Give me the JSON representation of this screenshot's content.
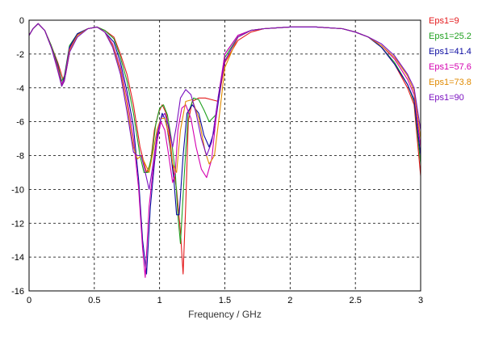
{
  "chart_data": {
    "type": "line",
    "title": "",
    "xlabel": "Frequency / GHz",
    "ylabel": "",
    "xlim": [
      0,
      3
    ],
    "ylim": [
      -16,
      0
    ],
    "xticks": [
      0,
      0.5,
      1,
      1.5,
      2,
      2.5,
      3
    ],
    "xtick_labels": [
      "0",
      "0.5",
      "1",
      "1.5",
      "2",
      "2.5",
      "3"
    ],
    "yticks": [
      0,
      -2,
      -4,
      -6,
      -8,
      -10,
      -12,
      -14,
      -16
    ],
    "ytick_labels": [
      "0",
      "-2",
      "-4",
      "-6",
      "-8",
      "-10",
      "-12",
      "-14",
      "-16"
    ],
    "grid": true,
    "grid_style": "dashed",
    "legend_placement": "right",
    "series": [
      {
        "name": "Eps1=9",
        "color": "#e41a1c",
        "x": [
          0,
          0.03,
          0.07,
          0.12,
          0.17,
          0.22,
          0.26,
          0.28,
          0.32,
          0.38,
          0.45,
          0.52,
          0.58,
          0.65,
          0.7,
          0.75,
          0.8,
          0.85,
          0.9,
          0.93,
          0.96,
          0.99,
          1.02,
          1.05,
          1.08,
          1.1,
          1.13,
          1.16,
          1.18,
          1.2,
          1.22,
          1.25,
          1.3,
          1.35,
          1.4,
          1.45,
          1.5,
          1.6,
          1.7,
          1.8,
          1.9,
          2,
          2.2,
          2.4,
          2.5,
          2.6,
          2.7,
          2.8,
          2.9,
          2.95,
          3
        ],
        "y": [
          -0.9,
          -0.5,
          -0.2,
          -0.6,
          -1.5,
          -2.5,
          -3.5,
          -3.2,
          -1.5,
          -0.8,
          -0.5,
          -0.4,
          -0.6,
          -1.0,
          -2.0,
          -3.2,
          -5.0,
          -7.5,
          -9.0,
          -8.5,
          -6.5,
          -5.5,
          -5.0,
          -5.5,
          -7.0,
          -8.5,
          -10.0,
          -12.5,
          -15.0,
          -11.0,
          -6.0,
          -4.8,
          -4.6,
          -4.6,
          -4.7,
          -4.8,
          -2.5,
          -1.2,
          -0.7,
          -0.5,
          -0.45,
          -0.4,
          -0.4,
          -0.5,
          -0.7,
          -1.0,
          -1.6,
          -2.6,
          -4.0,
          -5.0,
          -9.2
        ]
      },
      {
        "name": "Eps1=25.2",
        "color": "#1fa01f",
        "x": [
          0,
          0.03,
          0.07,
          0.12,
          0.17,
          0.22,
          0.25,
          0.27,
          0.31,
          0.37,
          0.45,
          0.52,
          0.58,
          0.65,
          0.7,
          0.75,
          0.8,
          0.85,
          0.88,
          0.91,
          0.94,
          0.97,
          1.0,
          1.03,
          1.06,
          1.09,
          1.12,
          1.14,
          1.16,
          1.19,
          1.22,
          1.26,
          1.3,
          1.34,
          1.38,
          1.43,
          1.5,
          1.6,
          1.7,
          1.8,
          1.9,
          2,
          2.2,
          2.4,
          2.5,
          2.6,
          2.7,
          2.8,
          2.9,
          2.95,
          3
        ],
        "y": [
          -0.9,
          -0.5,
          -0.2,
          -0.6,
          -1.5,
          -2.6,
          -3.6,
          -3.3,
          -1.5,
          -0.8,
          -0.5,
          -0.4,
          -0.6,
          -1.1,
          -2.2,
          -3.6,
          -5.5,
          -8.0,
          -9.0,
          -9.0,
          -8.0,
          -6.2,
          -5.2,
          -5.0,
          -5.6,
          -7.0,
          -9.0,
          -11.5,
          -13.2,
          -9.0,
          -5.5,
          -4.6,
          -4.7,
          -5.3,
          -6.0,
          -5.6,
          -2.2,
          -1.0,
          -0.6,
          -0.5,
          -0.45,
          -0.4,
          -0.4,
          -0.5,
          -0.7,
          -1.0,
          -1.6,
          -2.5,
          -3.8,
          -4.8,
          -8.5
        ]
      },
      {
        "name": "Eps1=41.4",
        "color": "#0a0aa0",
        "x": [
          0,
          0.03,
          0.07,
          0.12,
          0.17,
          0.22,
          0.25,
          0.27,
          0.31,
          0.37,
          0.45,
          0.52,
          0.58,
          0.65,
          0.7,
          0.75,
          0.8,
          0.84,
          0.87,
          0.9,
          0.93,
          0.96,
          0.99,
          1.02,
          1.05,
          1.08,
          1.11,
          1.13,
          1.15,
          1.18,
          1.21,
          1.25,
          1.3,
          1.34,
          1.38,
          1.42,
          1.5,
          1.6,
          1.7,
          1.8,
          1.9,
          2,
          2.2,
          2.4,
          2.5,
          2.6,
          2.7,
          2.8,
          2.9,
          2.95,
          3
        ],
        "y": [
          -0.9,
          -0.5,
          -0.2,
          -0.6,
          -1.6,
          -2.7,
          -3.8,
          -3.4,
          -1.6,
          -0.8,
          -0.5,
          -0.4,
          -0.7,
          -1.3,
          -2.5,
          -4.2,
          -6.3,
          -9.5,
          -13.0,
          -15.0,
          -11.0,
          -8.5,
          -6.5,
          -5.5,
          -6.0,
          -7.5,
          -9.5,
          -11.5,
          -11.5,
          -8.0,
          -5.5,
          -5.0,
          -5.5,
          -6.8,
          -7.5,
          -6.5,
          -2.0,
          -0.9,
          -0.6,
          -0.5,
          -0.45,
          -0.4,
          -0.4,
          -0.5,
          -0.7,
          -1.0,
          -1.6,
          -2.6,
          -3.8,
          -4.7,
          -8.0
        ]
      },
      {
        "name": "Eps1=57.6",
        "color": "#d400b0",
        "x": [
          0,
          0.03,
          0.07,
          0.12,
          0.17,
          0.22,
          0.25,
          0.27,
          0.31,
          0.37,
          0.45,
          0.52,
          0.58,
          0.64,
          0.7,
          0.75,
          0.8,
          0.84,
          0.87,
          0.89,
          0.92,
          0.95,
          0.98,
          1.01,
          1.04,
          1.07,
          1.1,
          1.12,
          1.14,
          1.17,
          1.2,
          1.24,
          1.28,
          1.32,
          1.36,
          1.4,
          1.45,
          1.5,
          1.6,
          1.7,
          1.8,
          1.9,
          2,
          2.2,
          2.4,
          2.5,
          2.6,
          2.7,
          2.8,
          2.9,
          2.95,
          3
        ],
        "y": [
          -0.9,
          -0.5,
          -0.2,
          -0.6,
          -1.6,
          -2.8,
          -3.8,
          -3.5,
          -1.7,
          -0.9,
          -0.5,
          -0.4,
          -0.7,
          -1.4,
          -2.8,
          -4.6,
          -7.0,
          -10.0,
          -13.5,
          -15.2,
          -11.0,
          -8.8,
          -7.2,
          -6.0,
          -6.5,
          -8.0,
          -9.6,
          -9.0,
          -6.5,
          -5.2,
          -5.0,
          -5.8,
          -7.5,
          -8.8,
          -9.3,
          -8.2,
          -4.5,
          -2.0,
          -0.9,
          -0.6,
          -0.5,
          -0.45,
          -0.4,
          -0.4,
          -0.5,
          -0.7,
          -1.0,
          -1.5,
          -2.3,
          -3.5,
          -4.4,
          -7.5
        ]
      },
      {
        "name": "Eps1=73.8",
        "color": "#e08a00",
        "x": [
          0,
          0.03,
          0.07,
          0.12,
          0.17,
          0.22,
          0.25,
          0.27,
          0.31,
          0.37,
          0.45,
          0.52,
          0.58,
          0.64,
          0.7,
          0.75,
          0.8,
          0.83,
          0.86,
          0.89,
          0.92,
          0.95,
          0.98,
          1.01,
          1.04,
          1.07,
          1.1,
          1.13,
          1.16,
          1.2,
          1.25,
          1.3,
          1.35,
          1.38,
          1.42,
          1.46,
          1.5,
          1.6,
          1.7,
          1.8,
          1.9,
          2,
          2.2,
          2.4,
          2.5,
          2.6,
          2.7,
          2.8,
          2.9,
          2.95,
          3
        ],
        "y": [
          -0.9,
          -0.5,
          -0.2,
          -0.6,
          -1.6,
          -2.9,
          -3.9,
          -3.6,
          -1.8,
          -0.9,
          -0.5,
          -0.4,
          -0.7,
          -1.5,
          -3.0,
          -5.0,
          -7.5,
          -8.2,
          -8.0,
          -8.5,
          -9.0,
          -7.8,
          -6.5,
          -5.8,
          -5.8,
          -6.8,
          -8.5,
          -9.0,
          -6.5,
          -4.8,
          -4.7,
          -5.8,
          -7.8,
          -8.5,
          -8.0,
          -5.5,
          -2.8,
          -1.0,
          -0.6,
          -0.5,
          -0.45,
          -0.4,
          -0.4,
          -0.5,
          -0.7,
          -1.0,
          -1.5,
          -2.2,
          -3.3,
          -4.2,
          -7.0
        ]
      },
      {
        "name": "Eps1=90",
        "color": "#7a10c0",
        "x": [
          0,
          0.03,
          0.07,
          0.12,
          0.17,
          0.22,
          0.25,
          0.27,
          0.31,
          0.37,
          0.45,
          0.52,
          0.58,
          0.64,
          0.7,
          0.75,
          0.8,
          0.83,
          0.86,
          0.89,
          0.92,
          0.95,
          0.98,
          1.01,
          1.04,
          1.07,
          1.1,
          1.13,
          1.16,
          1.2,
          1.24,
          1.28,
          1.32,
          1.36,
          1.4,
          1.45,
          1.5,
          1.6,
          1.7,
          1.8,
          1.9,
          2,
          2.2,
          2.4,
          2.5,
          2.6,
          2.7,
          2.8,
          2.9,
          2.95,
          3
        ],
        "y": [
          -0.9,
          -0.5,
          -0.2,
          -0.6,
          -1.6,
          -3.0,
          -3.9,
          -3.6,
          -1.9,
          -1.0,
          -0.5,
          -0.4,
          -0.7,
          -1.6,
          -3.2,
          -5.4,
          -7.8,
          -8.0,
          -8.0,
          -9.0,
          -10.0,
          -8.5,
          -6.8,
          -5.8,
          -5.5,
          -6.3,
          -7.5,
          -6.2,
          -4.6,
          -4.1,
          -4.4,
          -5.5,
          -7.0,
          -8.0,
          -7.2,
          -4.5,
          -2.4,
          -1.0,
          -0.6,
          -0.5,
          -0.45,
          -0.4,
          -0.4,
          -0.5,
          -0.7,
          -1.0,
          -1.4,
          -2.1,
          -3.2,
          -4.0,
          -6.5
        ]
      }
    ]
  }
}
